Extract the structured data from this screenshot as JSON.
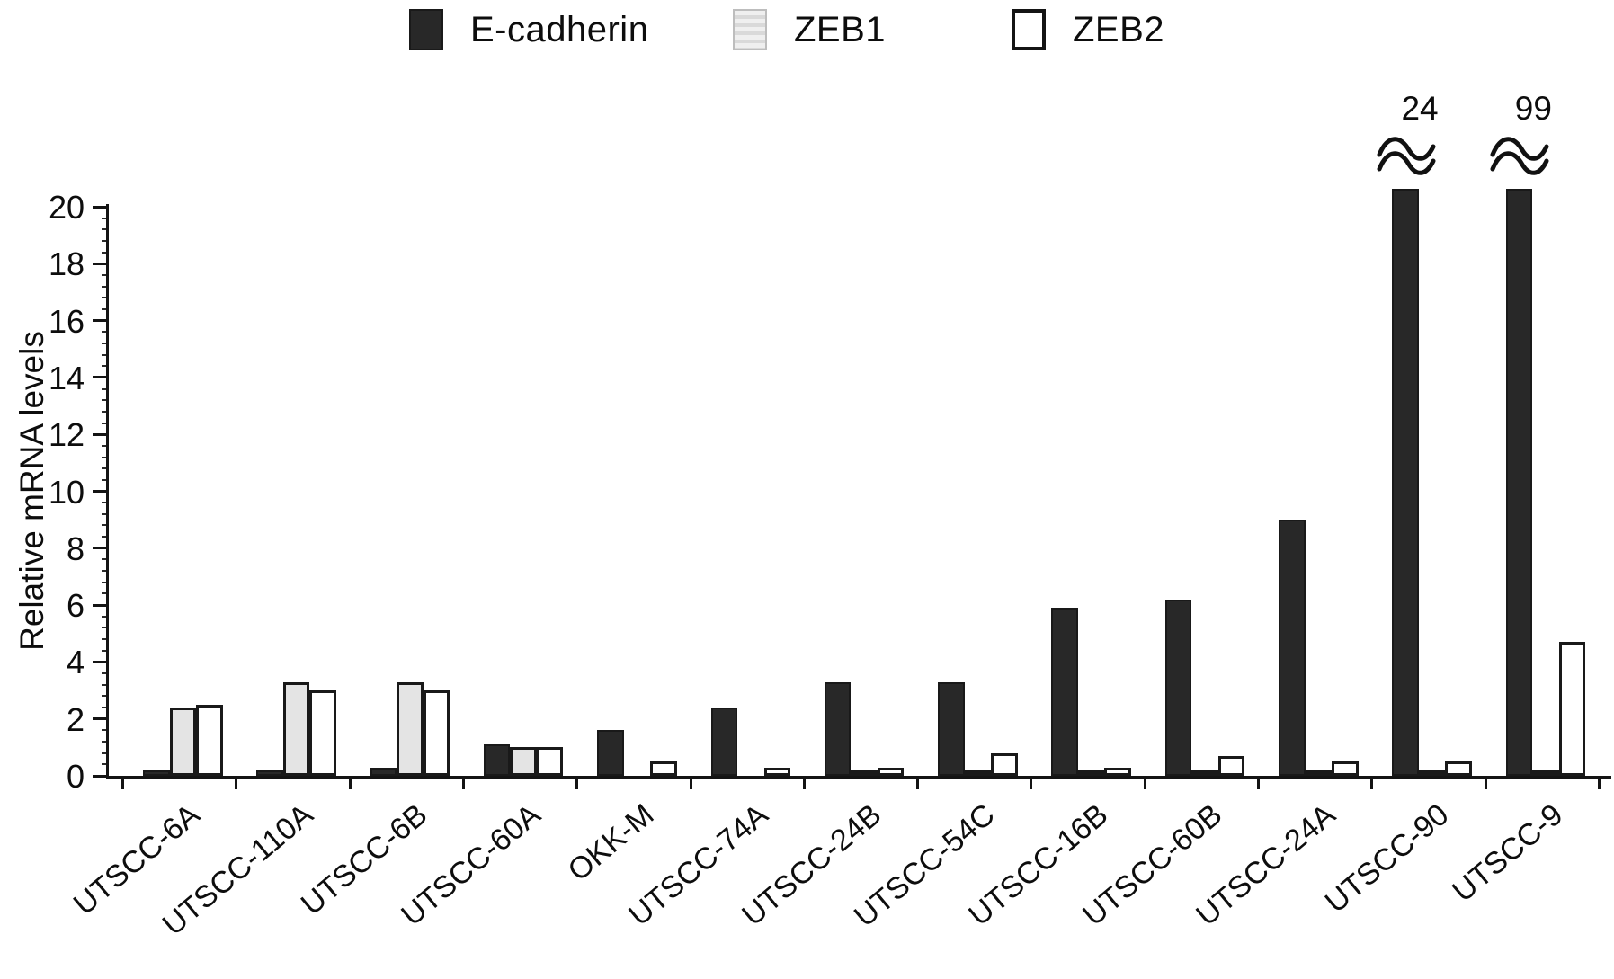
{
  "chart_data": {
    "type": "bar",
    "title": "",
    "xlabel": "",
    "ylabel": "Relative mRNA levels",
    "ylim": [
      0,
      20
    ],
    "yticks": [
      0,
      2,
      4,
      6,
      8,
      10,
      12,
      14,
      16,
      18,
      20
    ],
    "grid": false,
    "legend_position": "top",
    "categories": [
      "UTSCC-6A",
      "UTSCC-110A",
      "UTSCC-6B",
      "UTSCC-60A",
      "OKK-M",
      "UTSCC-74A",
      "UTSCC-24B",
      "UTSCC-54C",
      "UTSCC-16B",
      "UTSCC-60B",
      "UTSCC-24A",
      "UTSCC-90",
      "UTSCC-9"
    ],
    "series": [
      {
        "name": "E-cadherin",
        "style": "solid-dark",
        "color": "#282828",
        "values": [
          0.1,
          0.2,
          0.3,
          1.1,
          1.6,
          2.4,
          3.3,
          3.3,
          5.9,
          6.2,
          9.0,
          24,
          99
        ]
      },
      {
        "name": "ZEB1",
        "style": "light-gray",
        "color": "#e4e4e4",
        "values": [
          2.4,
          3.3,
          3.3,
          1.0,
          0,
          0,
          0.15,
          0.1,
          0.05,
          0.15,
          0.05,
          0.1,
          0.05
        ]
      },
      {
        "name": "ZEB2",
        "style": "white-outline",
        "color": "#ffffff",
        "values": [
          2.5,
          3.0,
          3.0,
          1.0,
          0.5,
          0.3,
          0.3,
          0.8,
          0.3,
          0.7,
          0.5,
          0.5,
          4.7
        ]
      }
    ],
    "axis_breaks": [
      {
        "category": "UTSCC-90",
        "series": "E-cadherin",
        "label": "24"
      },
      {
        "category": "UTSCC-9",
        "series": "E-cadherin",
        "label": "99"
      }
    ]
  }
}
